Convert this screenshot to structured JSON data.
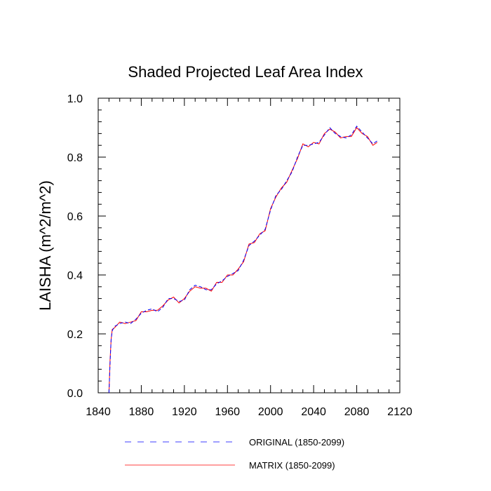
{
  "chart_data": {
    "type": "line",
    "title": "Shaded Projected Leaf Area Index",
    "xlabel": "",
    "ylabel": "LAISHA  (m^2/m^2)",
    "xlim": [
      1840,
      2120
    ],
    "ylim": [
      0.0,
      1.0
    ],
    "xticks": [
      1840,
      1880,
      1920,
      1960,
      2000,
      2040,
      2080,
      2120
    ],
    "yticks": [
      "0.0",
      "0.2",
      "0.4",
      "0.6",
      "0.8",
      "1.0"
    ],
    "grid": false,
    "legend_position": "bottom",
    "series": [
      {
        "name": "ORIGINAL (1850-2099)",
        "color": "#0000ff",
        "dash": "dashed",
        "x": [
          1850,
          1851,
          1852,
          1853,
          1855,
          1860,
          1865,
          1870,
          1875,
          1880,
          1885,
          1890,
          1895,
          1900,
          1905,
          1910,
          1915,
          1920,
          1925,
          1930,
          1935,
          1940,
          1945,
          1950,
          1955,
          1960,
          1965,
          1970,
          1975,
          1980,
          1985,
          1990,
          1995,
          2000,
          2005,
          2010,
          2015,
          2020,
          2025,
          2030,
          2035,
          2040,
          2045,
          2050,
          2055,
          2060,
          2065,
          2070,
          2075,
          2080,
          2085,
          2090,
          2095,
          2099
        ],
        "y": [
          0.0,
          0.1,
          0.18,
          0.21,
          0.225,
          0.235,
          0.24,
          0.235,
          0.25,
          0.27,
          0.28,
          0.285,
          0.275,
          0.29,
          0.32,
          0.32,
          0.31,
          0.315,
          0.35,
          0.365,
          0.36,
          0.35,
          0.35,
          0.37,
          0.38,
          0.395,
          0.405,
          0.415,
          0.45,
          0.5,
          0.515,
          0.535,
          0.555,
          0.62,
          0.67,
          0.69,
          0.72,
          0.75,
          0.8,
          0.84,
          0.84,
          0.845,
          0.85,
          0.875,
          0.9,
          0.88,
          0.87,
          0.865,
          0.875,
          0.905,
          0.885,
          0.865,
          0.845,
          0.855
        ]
      },
      {
        "name": "MATRIX (1850-2099)",
        "color": "#ff0000",
        "dash": "solid",
        "x": [
          1850,
          1851,
          1852,
          1853,
          1855,
          1860,
          1865,
          1870,
          1875,
          1880,
          1885,
          1890,
          1895,
          1900,
          1905,
          1910,
          1915,
          1920,
          1925,
          1930,
          1935,
          1940,
          1945,
          1950,
          1955,
          1960,
          1965,
          1970,
          1975,
          1980,
          1985,
          1990,
          1995,
          2000,
          2005,
          2010,
          2015,
          2020,
          2025,
          2030,
          2035,
          2040,
          2045,
          2050,
          2055,
          2060,
          2065,
          2070,
          2075,
          2080,
          2085,
          2090,
          2095,
          2099
        ],
        "y": [
          0.0,
          0.11,
          0.18,
          0.215,
          0.22,
          0.24,
          0.235,
          0.24,
          0.245,
          0.275,
          0.275,
          0.28,
          0.28,
          0.295,
          0.315,
          0.325,
          0.305,
          0.32,
          0.345,
          0.36,
          0.355,
          0.355,
          0.345,
          0.375,
          0.375,
          0.4,
          0.4,
          0.42,
          0.445,
          0.505,
          0.51,
          0.54,
          0.55,
          0.625,
          0.665,
          0.695,
          0.715,
          0.755,
          0.795,
          0.845,
          0.835,
          0.85,
          0.845,
          0.88,
          0.895,
          0.885,
          0.865,
          0.87,
          0.87,
          0.9,
          0.88,
          0.87,
          0.84,
          0.85
        ]
      }
    ]
  }
}
